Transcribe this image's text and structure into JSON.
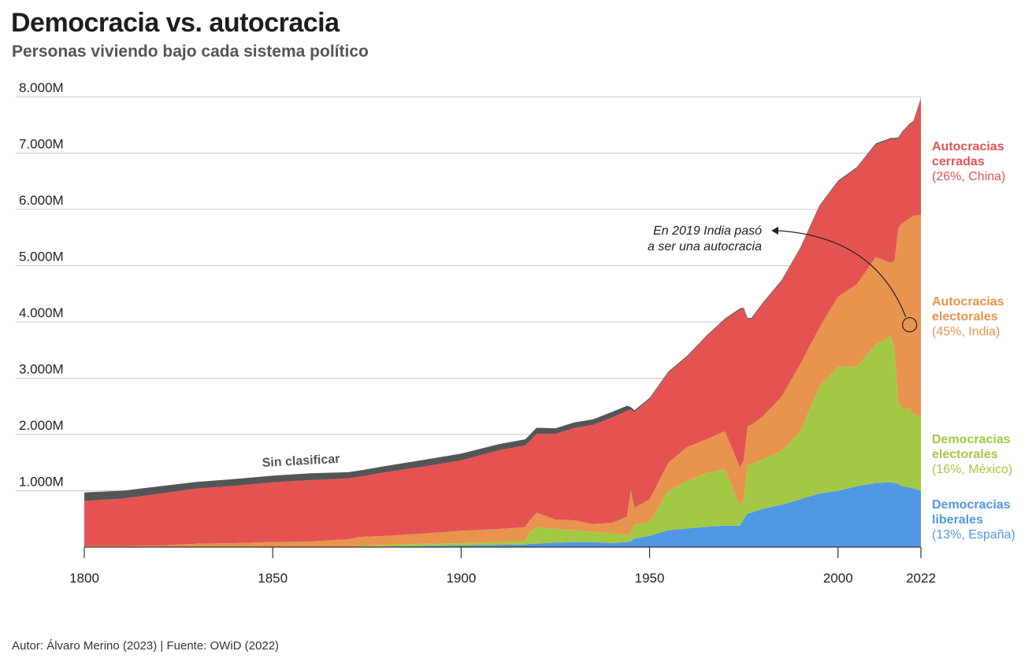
{
  "header": {
    "title": "Democracia vs. autocracia",
    "subtitle": "Personas viviendo bajo cada sistema político"
  },
  "footer": {
    "credit": "Autor: Álvaro Merino (2023) | Fuente: OWiD (2022)"
  },
  "colors": {
    "liberal": "#5098e3",
    "electoral_dem": "#a3c944",
    "electoral_aut": "#e8944f",
    "closed_aut": "#e45352",
    "unclassified": "#555555",
    "grid": "#c8c8c8",
    "axis": "#333333"
  },
  "chart_data": {
    "type": "area",
    "stacked": true,
    "title": "Democracia vs. autocracia",
    "subtitle": "Personas viviendo bajo cada sistema político",
    "xlabel": "",
    "ylabel": "",
    "xlim": [
      1800,
      2022
    ],
    "ylim": [
      0,
      8000
    ],
    "x_ticks": [
      1800,
      1850,
      1900,
      1950,
      2000,
      2022
    ],
    "y_ticks": [
      1000,
      2000,
      3000,
      4000,
      5000,
      6000,
      7000,
      8000
    ],
    "y_tick_labels": [
      "1.000M",
      "2.000M",
      "3.000M",
      "4.000M",
      "5.000M",
      "6.000M",
      "7.000M",
      "8.000M"
    ],
    "units": "millones de personas",
    "x": [
      1800,
      1810,
      1820,
      1830,
      1840,
      1850,
      1860,
      1870,
      1873,
      1880,
      1890,
      1900,
      1910,
      1917,
      1918,
      1920,
      1925,
      1930,
      1935,
      1940,
      1944,
      1945,
      1946,
      1950,
      1955,
      1960,
      1965,
      1970,
      1974,
      1975,
      1976,
      1977,
      1980,
      1985,
      1990,
      1995,
      2000,
      2005,
      2010,
      2014,
      2015,
      2016,
      2017,
      2019,
      2020,
      2022
    ],
    "series": [
      {
        "name": "Democracias liberales",
        "values": [
          0,
          0,
          0,
          0,
          0,
          0,
          0,
          0,
          0,
          10,
          20,
          30,
          40,
          45,
          60,
          60,
          80,
          85,
          90,
          70,
          90,
          100,
          150,
          200,
          300,
          330,
          360,
          380,
          380,
          500,
          600,
          610,
          680,
          750,
          850,
          950,
          1000,
          1080,
          1140,
          1150,
          1140,
          1120,
          1080,
          1060,
          1040,
          1000
        ]
      },
      {
        "name": "Democracias electorales",
        "values": [
          0,
          0,
          0,
          0,
          0,
          0,
          0,
          0,
          20,
          30,
          40,
          40,
          50,
          60,
          200,
          300,
          240,
          220,
          180,
          180,
          120,
          160,
          250,
          250,
          700,
          850,
          950,
          1000,
          350,
          350,
          850,
          860,
          880,
          960,
          1200,
          1900,
          2200,
          2130,
          2450,
          2600,
          2350,
          1450,
          1370,
          1400,
          1330,
          1300
        ]
      },
      {
        "name": "Autocracias electorales",
        "values": [
          20,
          20,
          30,
          60,
          70,
          90,
          100,
          140,
          160,
          160,
          180,
          220,
          230,
          250,
          200,
          250,
          170,
          170,
          140,
          180,
          330,
          750,
          300,
          400,
          500,
          600,
          600,
          680,
          680,
          700,
          700,
          700,
          760,
          960,
          1200,
          1040,
          1250,
          1460,
          1560,
          1300,
          1600,
          3100,
          3300,
          3380,
          3520,
          3600
        ]
      },
      {
        "name": "Autocracias cerradas",
        "values": [
          800,
          840,
          920,
          980,
          1020,
          1060,
          1090,
          1080,
          1070,
          1130,
          1190,
          1250,
          1400,
          1450,
          1410,
          1400,
          1520,
          1640,
          1760,
          1870,
          1880,
          1430,
          1700,
          1780,
          1600,
          1600,
          1820,
          1980,
          2810,
          2680,
          1900,
          1880,
          2000,
          2050,
          2050,
          2150,
          2040,
          2060,
          2000,
          2200,
          2160,
          1590,
          1610,
          1660,
          1660,
          2060
        ]
      },
      {
        "name": "Sin clasificar",
        "values": [
          150,
          140,
          130,
          120,
          120,
          120,
          120,
          110,
          110,
          110,
          120,
          120,
          110,
          110,
          110,
          110,
          100,
          100,
          100,
          100,
          90,
          50,
          30,
          20,
          20,
          20,
          20,
          20,
          20,
          20,
          20,
          20,
          20,
          20,
          20,
          20,
          20,
          20,
          20,
          20,
          20,
          20,
          20,
          20,
          20,
          20
        ]
      }
    ],
    "series_labels": [
      {
        "key": "closed_aut",
        "line1": "Autocracias",
        "line2": "cerradas",
        "share": "(26%, China)"
      },
      {
        "key": "electoral_aut",
        "line1": "Autocracias",
        "line2": "electorales",
        "share": "(45%, India)"
      },
      {
        "key": "electoral_dem",
        "line1": "Democracias",
        "line2": "electorales",
        "share": "(16%, México)"
      },
      {
        "key": "liberal",
        "line1": "Democracias",
        "line2": "liberales",
        "share": "(13%, España)"
      }
    ],
    "unclassified_label": "Sin clasificar",
    "annotation": {
      "line1": "En 2019 India pasó",
      "line2": "a ser una autocracia",
      "year": 2019,
      "value": 3950
    }
  }
}
